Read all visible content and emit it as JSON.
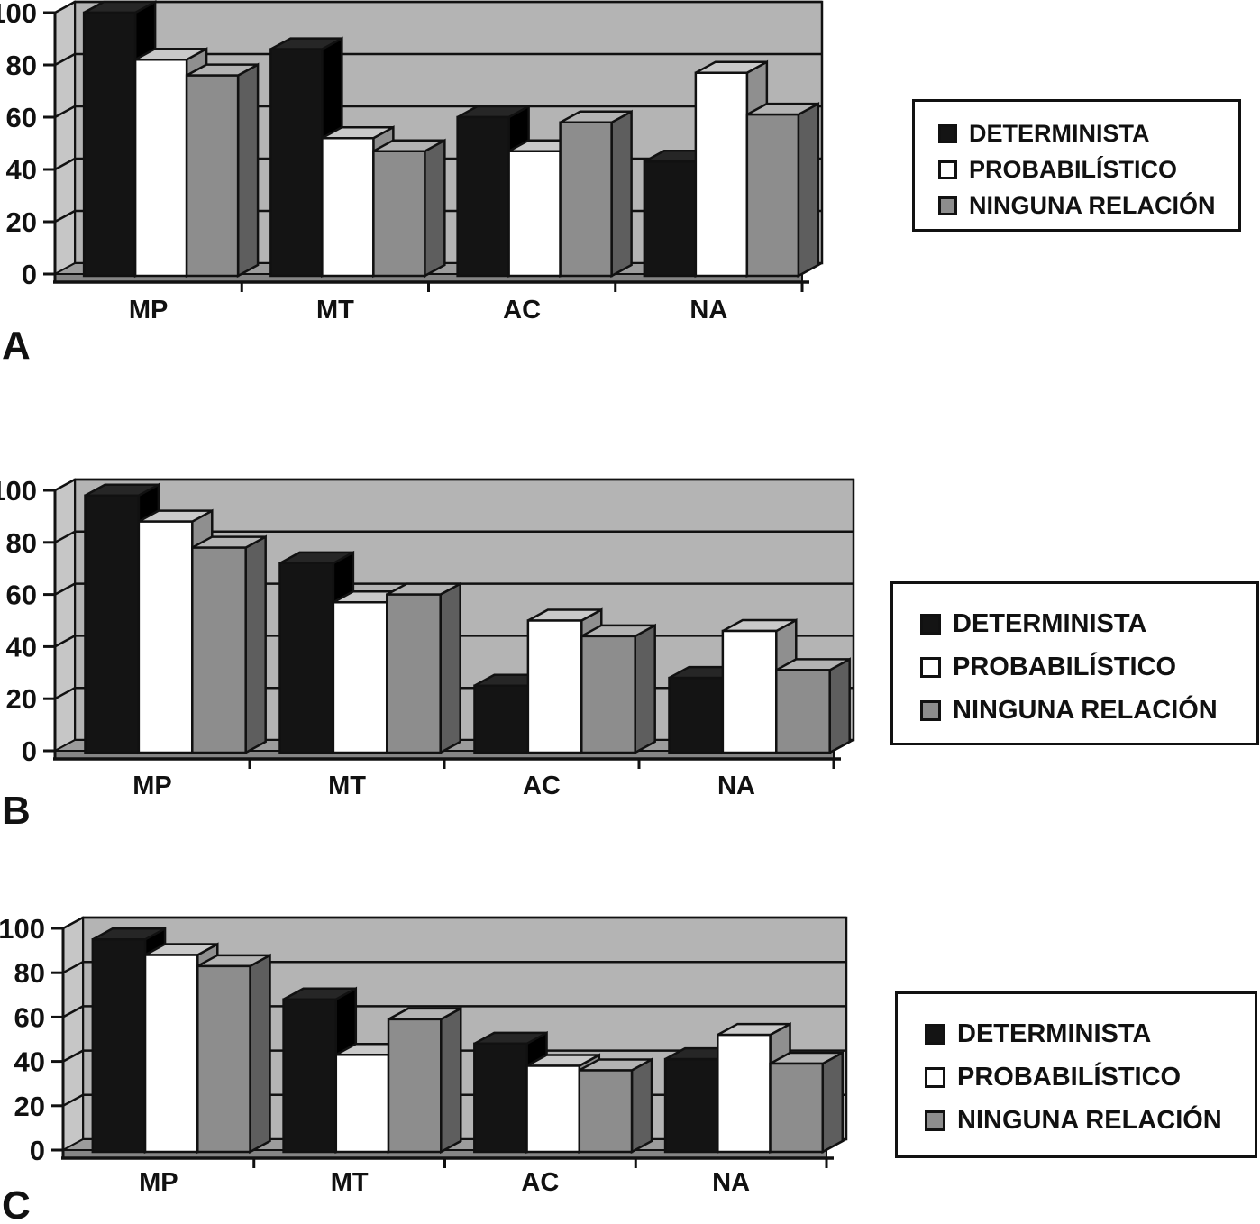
{
  "figure": {
    "panels": [
      "A",
      "B",
      "C"
    ],
    "y_axis_ticks": [
      "0",
      "20",
      "40",
      "60",
      "80",
      "100"
    ]
  },
  "legend": {
    "items": [
      {
        "label": "DETERMINISTA",
        "swatch": "black",
        "color": "#141414"
      },
      {
        "label": "PROBABILÍSTICO",
        "swatch": "white",
        "color": "#ffffff"
      },
      {
        "label": "NINGUNA RELACIÓN",
        "swatch": "gray",
        "color": "#8d8d8d"
      }
    ],
    "position": "right",
    "border_color": "#111111"
  },
  "colors": {
    "back_wall": "#b4b4b4",
    "left_wall": "#c6c6c6",
    "floor_top": "#9c9c9c",
    "floor_face": "#858585",
    "outline": "#111111",
    "bar_black": {
      "front": "#141414",
      "top": "#262626",
      "side": "#000000"
    },
    "bar_white": {
      "front": "#ffffff",
      "top": "#c9c9c9",
      "side": "#8f8f8f"
    },
    "bar_gray": {
      "front": "#8d8d8d",
      "top": "#b3b3b3",
      "side": "#5e5e5e"
    }
  },
  "chart_data": [
    {
      "type": "bar",
      "panel_label": "A",
      "title": "",
      "xlabel": "",
      "ylabel": "",
      "ylim": [
        0,
        100
      ],
      "yticks": [
        0,
        20,
        40,
        60,
        80,
        100
      ],
      "grid": true,
      "legend_position": "right",
      "categories": [
        "MP",
        "MT",
        "AC",
        "NA"
      ],
      "series": [
        {
          "name": "DETERMINISTA",
          "values": [
            100,
            86,
            60,
            43
          ]
        },
        {
          "name": "PROBABILÍSTICO",
          "values": [
            82,
            52,
            47,
            77
          ]
        },
        {
          "name": "NINGUNA RELACIÓN",
          "values": [
            76,
            47,
            58,
            61
          ]
        }
      ]
    },
    {
      "type": "bar",
      "panel_label": "B",
      "title": "",
      "xlabel": "",
      "ylabel": "",
      "ylim": [
        0,
        100
      ],
      "yticks": [
        0,
        20,
        40,
        60,
        80,
        100
      ],
      "grid": true,
      "legend_position": "right",
      "categories": [
        "MP",
        "MT",
        "AC",
        "NA"
      ],
      "series": [
        {
          "name": "DETERMINISTA",
          "values": [
            98,
            72,
            25,
            28
          ]
        },
        {
          "name": "PROBABILÍSTICO",
          "values": [
            88,
            57,
            50,
            46
          ]
        },
        {
          "name": "NINGUNA RELACIÓN",
          "values": [
            78,
            60,
            44,
            31
          ]
        }
      ]
    },
    {
      "type": "bar",
      "panel_label": "C",
      "title": "",
      "xlabel": "",
      "ylabel": "",
      "ylim": [
        0,
        100
      ],
      "yticks": [
        0,
        20,
        40,
        60,
        80,
        100
      ],
      "grid": true,
      "legend_position": "right",
      "categories": [
        "MP",
        "MT",
        "AC",
        "NA"
      ],
      "series": [
        {
          "name": "DETERMINISTA",
          "values": [
            95,
            68,
            48,
            41
          ]
        },
        {
          "name": "PROBABILÍSTICO",
          "values": [
            88,
            43,
            38,
            52
          ]
        },
        {
          "name": "NINGUNA RELACIÓN",
          "values": [
            83,
            59,
            36,
            39
          ]
        }
      ]
    }
  ]
}
